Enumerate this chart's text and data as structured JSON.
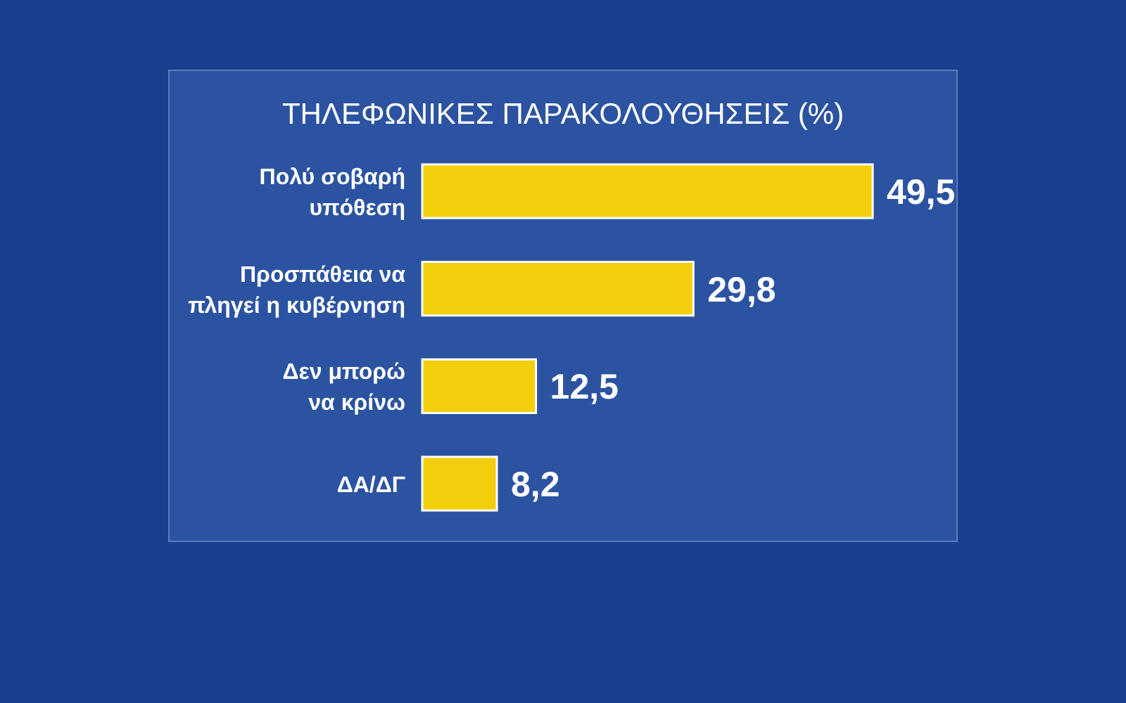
{
  "chart_data": {
    "type": "bar",
    "orientation": "horizontal",
    "title": "ΤΗΛΕΦΩΝΙΚΕΣ ΠΑΡΑΚΟΛΟΥΘΗΣΕΙΣ (%)",
    "categories": [
      "Πολύ σοβαρή υπόθεση",
      "Προσπάθεια να πληγεί η κυβέρνηση",
      "Δεν μπορώ να κρίνω",
      "ΔΑ/ΔΓ"
    ],
    "values": [
      49.5,
      29.8,
      12.5,
      8.2
    ],
    "value_labels": [
      "49,5",
      "29,8",
      "12,5",
      "8,2"
    ],
    "color": "#f2cf0a"
  }
}
